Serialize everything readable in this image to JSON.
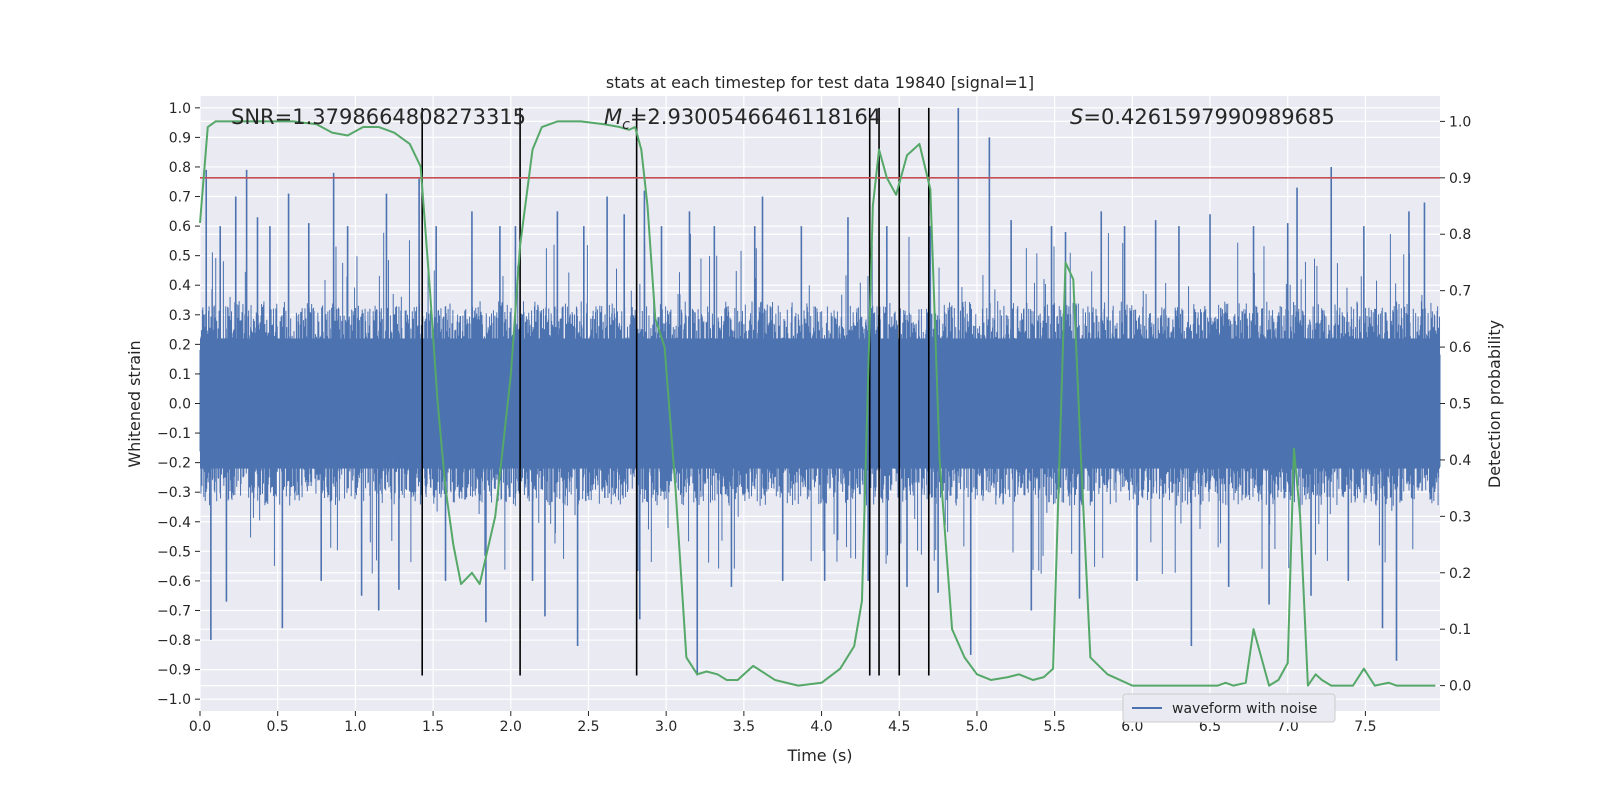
{
  "chart_data": {
    "type": "line",
    "title": "stats at each timestep for test data 19840 [signal=1]",
    "xlabel": "Time (s)",
    "ylabel": "Whitened strain",
    "y2label": "Detection probability",
    "xlim": [
      0.0,
      7.98
    ],
    "ylim": [
      -1.04,
      1.04
    ],
    "y2lim": [
      -0.045,
      1.045
    ],
    "x_ticks": [
      0.0,
      0.5,
      1.0,
      1.5,
      2.0,
      2.5,
      3.0,
      3.5,
      4.0,
      4.5,
      5.0,
      5.5,
      6.0,
      6.5,
      7.0,
      7.5
    ],
    "x_tick_labels": [
      "0.0",
      "0.5",
      "1.0",
      "1.5",
      "2.0",
      "2.5",
      "3.0",
      "3.5",
      "4.0",
      "4.5",
      "5.0",
      "5.5",
      "6.0",
      "6.5",
      "7.0",
      "7.5"
    ],
    "y_ticks": [
      -1.0,
      -0.9,
      -0.8,
      -0.7,
      -0.6,
      -0.5,
      -0.4,
      -0.3,
      -0.2,
      -0.1,
      0.0,
      0.1,
      0.2,
      0.3,
      0.4,
      0.5,
      0.6,
      0.7,
      0.8,
      0.9,
      1.0
    ],
    "y_tick_labels": [
      "−1.0",
      "−0.9",
      "−0.8",
      "−0.7",
      "−0.6",
      "−0.5",
      "−0.4",
      "−0.3",
      "−0.2",
      "−0.1",
      "0.0",
      "0.1",
      "0.2",
      "0.3",
      "0.4",
      "0.5",
      "0.6",
      "0.7",
      "0.8",
      "0.9",
      "1.0"
    ],
    "y2_ticks": [
      0.0,
      0.1,
      0.2,
      0.3,
      0.4,
      0.5,
      0.6,
      0.7,
      0.8,
      0.9,
      1.0
    ],
    "y2_tick_labels": [
      "0.0",
      "0.1",
      "0.2",
      "0.3",
      "0.4",
      "0.5",
      "0.6",
      "0.7",
      "0.8",
      "0.9",
      "1.0"
    ],
    "grid": true,
    "legend": {
      "placement": "bottom-right",
      "entries": [
        "waveform with noise"
      ]
    },
    "annotations": {
      "snr": "SNR=1.3798664808273315",
      "mc_prefix": "M",
      "mc_sub": "c",
      "mc_value": "=2.9300546646118164",
      "s_prefix": "S",
      "s_value": "=0.4261597990989685"
    },
    "threshold": {
      "value": 0.9,
      "axis": "y2",
      "color": "#c44e52"
    },
    "vertical_lines": {
      "x": [
        1.43,
        2.06,
        2.81,
        4.31,
        4.37,
        4.5,
        4.69
      ],
      "y_range": [
        -0.92,
        1.0
      ],
      "color": "#000000"
    },
    "waveform": {
      "name": "waveform with noise",
      "color": "#4c72b0",
      "duration": 7.98,
      "typical_envelope": [
        -0.33,
        0.33
      ],
      "spikes": [
        {
          "x": 0.04,
          "y": 0.79
        },
        {
          "x": 0.07,
          "y": -0.8
        },
        {
          "x": 0.13,
          "y": 0.6
        },
        {
          "x": 0.17,
          "y": -0.67
        },
        {
          "x": 0.23,
          "y": 0.7
        },
        {
          "x": 0.3,
          "y": 0.79
        },
        {
          "x": 0.37,
          "y": 0.63
        },
        {
          "x": 0.45,
          "y": 0.6
        },
        {
          "x": 0.53,
          "y": -0.76
        },
        {
          "x": 0.57,
          "y": 0.71
        },
        {
          "x": 0.7,
          "y": 0.61
        },
        {
          "x": 0.78,
          "y": -0.6
        },
        {
          "x": 0.86,
          "y": 0.78
        },
        {
          "x": 0.95,
          "y": 0.6
        },
        {
          "x": 1.04,
          "y": -0.65
        },
        {
          "x": 1.15,
          "y": -0.7
        },
        {
          "x": 1.2,
          "y": 0.71
        },
        {
          "x": 1.28,
          "y": -0.63
        },
        {
          "x": 1.41,
          "y": 0.76
        },
        {
          "x": 1.52,
          "y": 0.6
        },
        {
          "x": 1.58,
          "y": -0.6
        },
        {
          "x": 1.75,
          "y": 0.65
        },
        {
          "x": 1.84,
          "y": -0.74
        },
        {
          "x": 1.93,
          "y": 0.6
        },
        {
          "x": 2.03,
          "y": 0.6
        },
        {
          "x": 2.14,
          "y": -0.6
        },
        {
          "x": 2.22,
          "y": -0.72
        },
        {
          "x": 2.3,
          "y": 0.65
        },
        {
          "x": 2.43,
          "y": -0.82
        },
        {
          "x": 2.47,
          "y": 0.6
        },
        {
          "x": 2.62,
          "y": 0.7
        },
        {
          "x": 2.73,
          "y": 0.64
        },
        {
          "x": 2.83,
          "y": -0.73
        },
        {
          "x": 2.86,
          "y": 0.72
        },
        {
          "x": 2.97,
          "y": 0.6
        },
        {
          "x": 3.15,
          "y": 0.65
        },
        {
          "x": 3.2,
          "y": -0.92
        },
        {
          "x": 3.31,
          "y": 0.6
        },
        {
          "x": 3.42,
          "y": -0.62
        },
        {
          "x": 3.57,
          "y": 0.6
        },
        {
          "x": 3.62,
          "y": 0.7
        },
        {
          "x": 3.75,
          "y": -0.6
        },
        {
          "x": 3.87,
          "y": 0.6
        },
        {
          "x": 4.02,
          "y": -0.6
        },
        {
          "x": 4.17,
          "y": 0.63
        },
        {
          "x": 4.3,
          "y": -0.6
        },
        {
          "x": 4.42,
          "y": 0.6
        },
        {
          "x": 4.55,
          "y": -0.62
        },
        {
          "x": 4.7,
          "y": 0.6
        },
        {
          "x": 4.75,
          "y": -0.64
        },
        {
          "x": 4.88,
          "y": 1.0
        },
        {
          "x": 4.96,
          "y": -0.85
        },
        {
          "x": 5.08,
          "y": 0.9
        },
        {
          "x": 5.22,
          "y": 0.62
        },
        {
          "x": 5.35,
          "y": -0.7
        },
        {
          "x": 5.48,
          "y": 0.6
        },
        {
          "x": 5.57,
          "y": 0.58
        },
        {
          "x": 5.66,
          "y": -0.66
        },
        {
          "x": 5.8,
          "y": 0.65
        },
        {
          "x": 5.95,
          "y": 0.6
        },
        {
          "x": 6.03,
          "y": -0.6
        },
        {
          "x": 6.15,
          "y": 0.62
        },
        {
          "x": 6.3,
          "y": 0.6
        },
        {
          "x": 6.38,
          "y": -0.82
        },
        {
          "x": 6.5,
          "y": 0.64
        },
        {
          "x": 6.62,
          "y": -0.62
        },
        {
          "x": 6.78,
          "y": 0.6
        },
        {
          "x": 6.88,
          "y": -0.68
        },
        {
          "x": 7.0,
          "y": 0.61
        },
        {
          "x": 7.06,
          "y": 0.73
        },
        {
          "x": 7.15,
          "y": -0.65
        },
        {
          "x": 7.28,
          "y": 0.8
        },
        {
          "x": 7.39,
          "y": -0.6
        },
        {
          "x": 7.49,
          "y": 0.6
        },
        {
          "x": 7.61,
          "y": -0.76
        },
        {
          "x": 7.7,
          "y": -0.87
        },
        {
          "x": 7.78,
          "y": 0.65
        },
        {
          "x": 7.88,
          "y": 0.68
        }
      ]
    },
    "probability": {
      "color": "#55a868",
      "x": [
        0.0,
        0.05,
        0.1,
        0.2,
        0.4,
        0.6,
        0.75,
        0.85,
        0.95,
        1.05,
        1.15,
        1.25,
        1.35,
        1.42,
        1.48,
        1.53,
        1.58,
        1.63,
        1.68,
        1.75,
        1.8,
        1.9,
        2.0,
        2.06,
        2.14,
        2.2,
        2.3,
        2.45,
        2.6,
        2.7,
        2.76,
        2.8,
        2.84,
        2.88,
        2.93,
        2.99,
        3.06,
        3.13,
        3.2,
        3.26,
        3.33,
        3.39,
        3.46,
        3.56,
        3.7,
        3.85,
        4.0,
        4.12,
        4.21,
        4.26,
        4.29,
        4.33,
        4.37,
        4.42,
        4.48,
        4.55,
        4.63,
        4.7,
        4.76,
        4.84,
        4.92,
        5.0,
        5.09,
        5.2,
        5.27,
        5.36,
        5.43,
        5.49,
        5.57,
        5.62,
        5.67,
        5.73,
        5.84,
        5.92,
        6.0,
        6.1,
        6.3,
        6.55,
        6.6,
        6.65,
        6.73,
        6.78,
        6.83,
        6.88,
        6.94,
        7.0,
        7.04,
        7.08,
        7.13,
        7.18,
        7.22,
        7.28,
        7.35,
        7.42,
        7.49,
        7.56,
        7.65,
        7.7,
        7.8,
        7.95
      ],
      "y": [
        0.82,
        0.99,
        1.0,
        1.0,
        1.0,
        1.0,
        0.995,
        0.98,
        0.975,
        0.99,
        0.99,
        0.98,
        0.96,
        0.92,
        0.7,
        0.5,
        0.35,
        0.25,
        0.18,
        0.2,
        0.18,
        0.3,
        0.55,
        0.78,
        0.95,
        0.99,
        1.0,
        1.0,
        0.995,
        0.99,
        0.985,
        0.99,
        0.95,
        0.85,
        0.65,
        0.6,
        0.35,
        0.05,
        0.02,
        0.025,
        0.02,
        0.01,
        0.01,
        0.035,
        0.01,
        0.0,
        0.005,
        0.03,
        0.07,
        0.15,
        0.45,
        0.85,
        0.95,
        0.9,
        0.87,
        0.94,
        0.96,
        0.88,
        0.4,
        0.1,
        0.05,
        0.02,
        0.01,
        0.015,
        0.02,
        0.01,
        0.015,
        0.03,
        0.75,
        0.72,
        0.4,
        0.05,
        0.02,
        0.01,
        0.0,
        0.0,
        0.0,
        0.0,
        0.005,
        0.0,
        0.005,
        0.1,
        0.05,
        0.0,
        0.01,
        0.04,
        0.42,
        0.3,
        0.0,
        0.02,
        0.01,
        0.0,
        0.0,
        0.0,
        0.03,
        0.0,
        0.005,
        0.0,
        0.0,
        0.0
      ]
    }
  }
}
